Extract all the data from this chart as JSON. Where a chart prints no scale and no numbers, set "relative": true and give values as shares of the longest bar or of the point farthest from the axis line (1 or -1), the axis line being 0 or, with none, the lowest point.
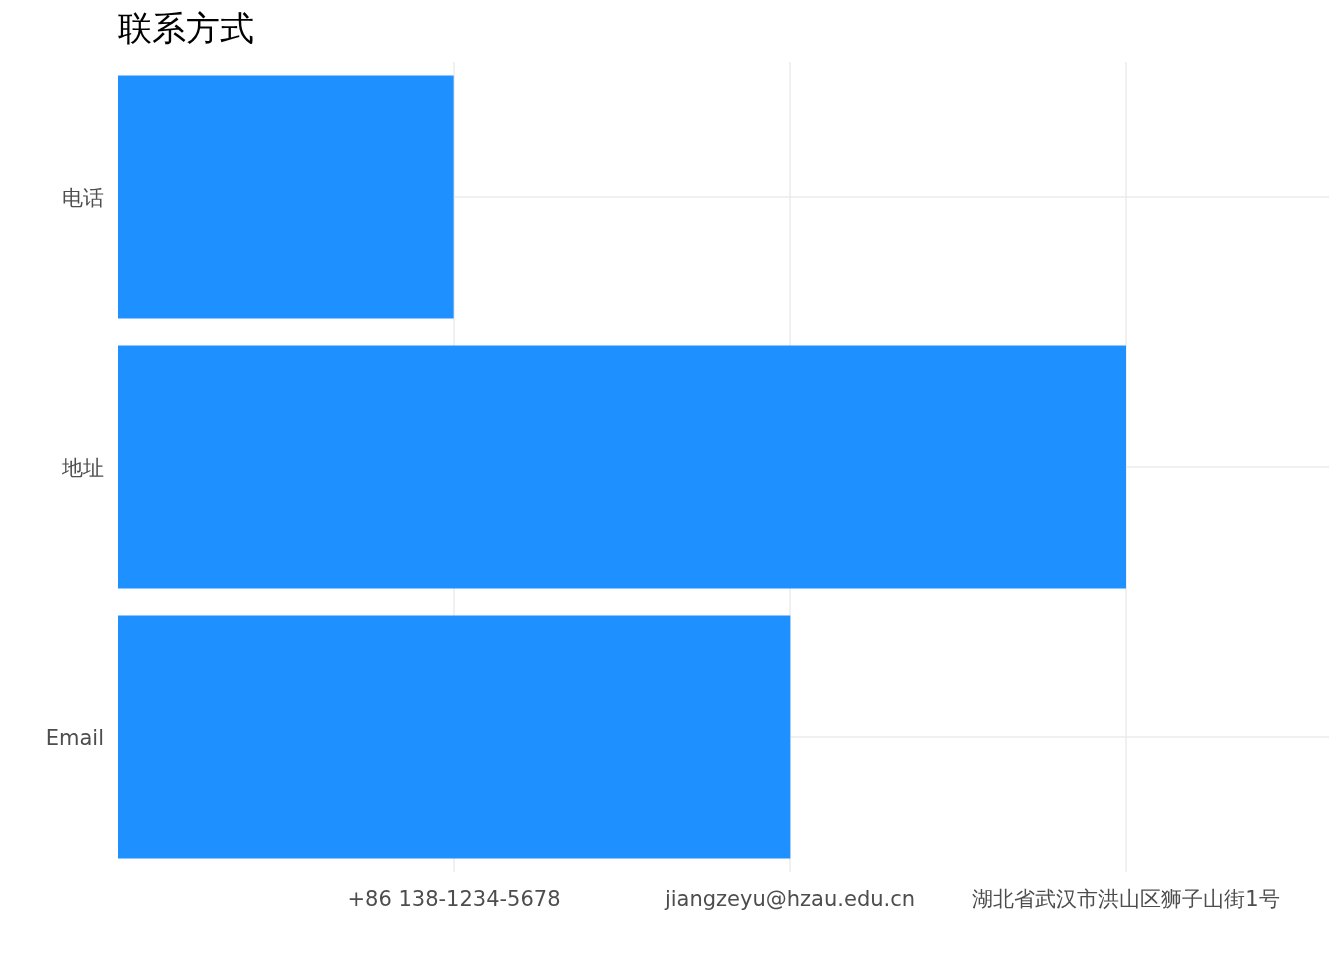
{
  "chart_data": {
    "type": "bar",
    "orientation": "horizontal",
    "title": "联系方式",
    "relative": true,
    "categories": [
      "电话",
      "地址",
      "Email"
    ],
    "values": [
      0.333,
      1,
      0.667
    ],
    "color": "#1e90ff",
    "annotations": [
      "+86 138-1234-5678",
      "jiangzeyu@hzau.edu.cn",
      "湖北省武汉市洪山区狮子山街1号"
    ],
    "grid": true
  }
}
